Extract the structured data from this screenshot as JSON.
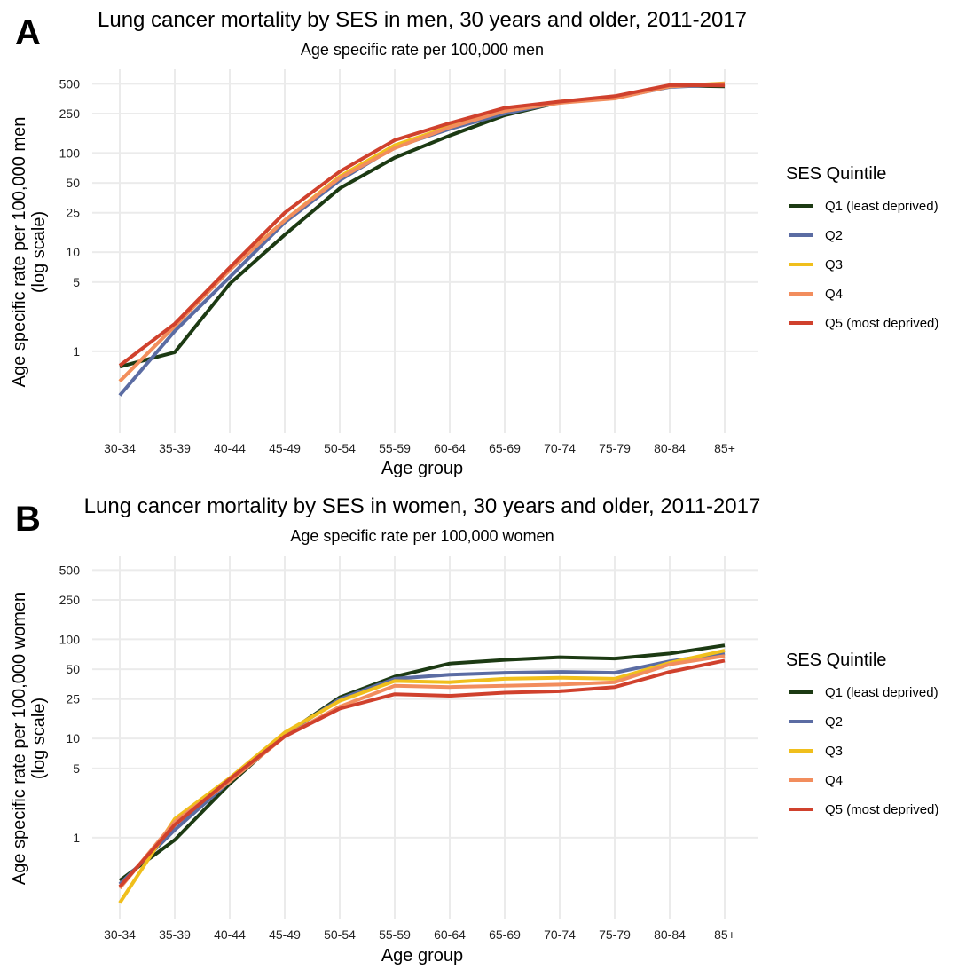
{
  "chart_data": [
    {
      "type": "line",
      "panel_label": "A",
      "title": "Lung cancer mortality by SES in men, 30 years and older, 2011-2017",
      "subtitle": "Age specific rate per 100,000 men",
      "xlabel": "Age group",
      "ylabel": [
        "Age specific rate per 100,000 men",
        "(log scale)"
      ],
      "y_scale": "log",
      "ylim": [
        0.15,
        700
      ],
      "yticks": [
        1,
        5,
        10,
        25,
        50,
        100,
        250,
        500
      ],
      "grid": true,
      "legend": {
        "title": "SES Quintile",
        "position": "right"
      },
      "categories": [
        "30-34",
        "35-39",
        "40-44",
        "45-49",
        "50-54",
        "55-59",
        "60-64",
        "65-69",
        "70-74",
        "75-79",
        "80-84",
        "85+"
      ],
      "series": [
        {
          "name": "Q1 (least deprived)",
          "color": "#1c3a13",
          "values": [
            0.7,
            0.98,
            4.8,
            15,
            44,
            90,
            150,
            240,
            325,
            370,
            480,
            470
          ]
        },
        {
          "name": "Q2",
          "color": "#5b6ca3",
          "values": [
            0.36,
            1.6,
            5.6,
            20,
            53,
            115,
            175,
            250,
            325,
            360,
            465,
            490
          ]
        },
        {
          "name": "Q3",
          "color": "#f0bf1c",
          "values": [
            0.5,
            1.8,
            6.8,
            21,
            58,
            120,
            185,
            265,
            330,
            360,
            470,
            505
          ]
        },
        {
          "name": "Q4",
          "color": "#f28d5d",
          "values": [
            0.5,
            1.8,
            6.6,
            21,
            56,
            112,
            182,
            265,
            320,
            355,
            470,
            500
          ]
        },
        {
          "name": "Q5 (most deprived)",
          "color": "#d0412d",
          "values": [
            0.72,
            1.9,
            7,
            25,
            65,
            135,
            200,
            285,
            330,
            375,
            485,
            480
          ]
        }
      ]
    },
    {
      "type": "line",
      "panel_label": "B",
      "title": "Lung cancer mortality by SES in women, 30 years and older, 2011-2017",
      "subtitle": "Age specific rate per 100,000 women",
      "xlabel": "Age group",
      "ylabel": [
        "Age specific rate per 100,000 women",
        "(log scale)"
      ],
      "y_scale": "log",
      "ylim": [
        0.15,
        700
      ],
      "yticks": [
        1,
        5,
        10,
        25,
        50,
        100,
        250,
        500
      ],
      "grid": true,
      "legend": {
        "title": "SES Quintile",
        "position": "right"
      },
      "categories": [
        "30-34",
        "35-39",
        "40-44",
        "45-49",
        "50-54",
        "55-59",
        "60-64",
        "65-69",
        "70-74",
        "75-79",
        "80-84",
        "85+"
      ],
      "series": [
        {
          "name": "Q1 (least deprived)",
          "color": "#1c3a13",
          "values": [
            0.37,
            0.95,
            3.5,
            11,
            26,
            42,
            57,
            62,
            66,
            64,
            72,
            87
          ]
        },
        {
          "name": "Q2",
          "color": "#5b6ca3",
          "values": [
            0.34,
            1.2,
            3.7,
            11,
            25,
            40,
            44,
            46,
            47,
            46,
            60,
            72
          ]
        },
        {
          "name": "Q3",
          "color": "#f0bf1c",
          "values": [
            0.22,
            1.55,
            4,
            11.5,
            24,
            38,
            37,
            40,
            41,
            40,
            58,
            77
          ]
        },
        {
          "name": "Q4",
          "color": "#f28d5d",
          "values": [
            0.31,
            1.45,
            3.7,
            10.5,
            21,
            34,
            33,
            34,
            35,
            37,
            56,
            68
          ]
        },
        {
          "name": "Q5 (most deprived)",
          "color": "#d0412d",
          "values": [
            0.32,
            1.35,
            3.9,
            10.5,
            20,
            28,
            27,
            29,
            30,
            33,
            47,
            61
          ]
        }
      ]
    }
  ]
}
